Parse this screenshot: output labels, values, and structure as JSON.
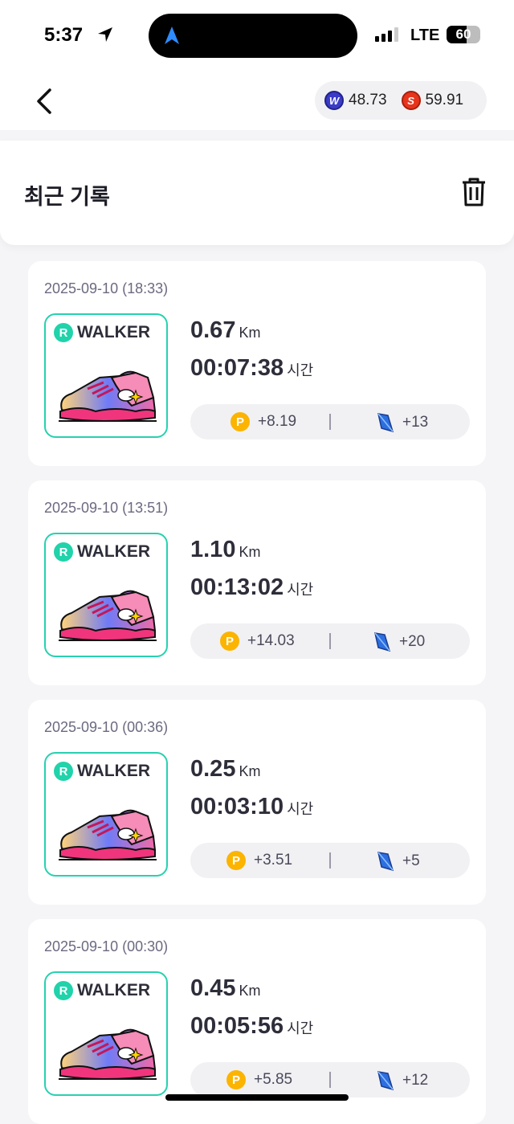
{
  "status_bar": {
    "time": "5:37",
    "network": "LTE",
    "battery": "60",
    "battery_level": 60
  },
  "header": {
    "coins": [
      {
        "icon": "w-coin-icon",
        "value": "48.73",
        "color": "#3b3bc8"
      },
      {
        "icon": "s-coin-icon",
        "value": "59.91",
        "color": "#e8341c"
      }
    ]
  },
  "section": {
    "title": "최근 기록"
  },
  "records": [
    {
      "date": "2025-09-10 (18:33)",
      "brand": "WALKER",
      "distance": "0.67",
      "distance_unit": "Km",
      "duration": "00:07:38",
      "duration_unit": "시간",
      "points": "+8.19",
      "gems": "+13"
    },
    {
      "date": "2025-09-10 (13:51)",
      "brand": "WALKER",
      "distance": "1.10",
      "distance_unit": "Km",
      "duration": "00:13:02",
      "duration_unit": "시간",
      "points": "+14.03",
      "gems": "+20"
    },
    {
      "date": "2025-09-10 (00:36)",
      "brand": "WALKER",
      "distance": "0.25",
      "distance_unit": "Km",
      "duration": "00:03:10",
      "duration_unit": "시간",
      "points": "+3.51",
      "gems": "+5"
    },
    {
      "date": "2025-09-10 (00:30)",
      "brand": "WALKER",
      "distance": "0.45",
      "distance_unit": "Km",
      "duration": "00:05:56",
      "duration_unit": "시간",
      "points": "+5.85",
      "gems": "+12"
    }
  ]
}
